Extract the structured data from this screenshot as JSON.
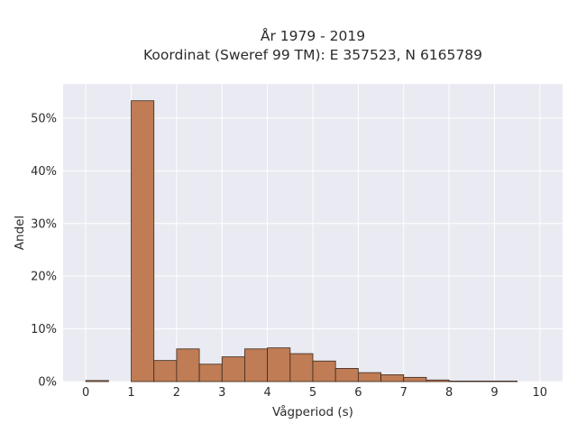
{
  "chart_data": {
    "type": "bar",
    "title_line1": "År 1979 - 2019",
    "title_line2": "Koordinat (Sweref 99 TM): E 357523, N 6165789",
    "xlabel": "Vågperiod (s)",
    "ylabel": "Andel",
    "xlim": [
      -0.5,
      10.5
    ],
    "ylim": [
      0,
      0.565
    ],
    "x_ticks": [
      0,
      1,
      2,
      3,
      4,
      5,
      6,
      7,
      8,
      9,
      10
    ],
    "y_ticks": [
      0,
      0.1,
      0.2,
      0.3,
      0.4,
      0.5
    ],
    "y_tick_labels": [
      "0%",
      "10%",
      "20%",
      "30%",
      "40%",
      "50%"
    ],
    "bin_width": 0.5,
    "bins": [
      {
        "start": 0.0,
        "value": 0.002
      },
      {
        "start": 1.0,
        "value": 0.533
      },
      {
        "start": 1.5,
        "value": 0.04
      },
      {
        "start": 2.0,
        "value": 0.062
      },
      {
        "start": 2.5,
        "value": 0.033
      },
      {
        "start": 3.0,
        "value": 0.047
      },
      {
        "start": 3.5,
        "value": 0.062
      },
      {
        "start": 4.0,
        "value": 0.064
      },
      {
        "start": 4.5,
        "value": 0.053
      },
      {
        "start": 5.0,
        "value": 0.039
      },
      {
        "start": 5.5,
        "value": 0.025
      },
      {
        "start": 6.0,
        "value": 0.017
      },
      {
        "start": 6.5,
        "value": 0.013
      },
      {
        "start": 7.0,
        "value": 0.008
      },
      {
        "start": 7.5,
        "value": 0.003
      },
      {
        "start": 8.0,
        "value": 0.001
      },
      {
        "start": 8.5,
        "value": 0.001
      },
      {
        "start": 9.0,
        "value": 0.001
      }
    ],
    "bar_color": "#bf7c55",
    "bar_edge_color": "#3a2a1f",
    "plot_background": "#eaeaf2",
    "grid": true
  }
}
